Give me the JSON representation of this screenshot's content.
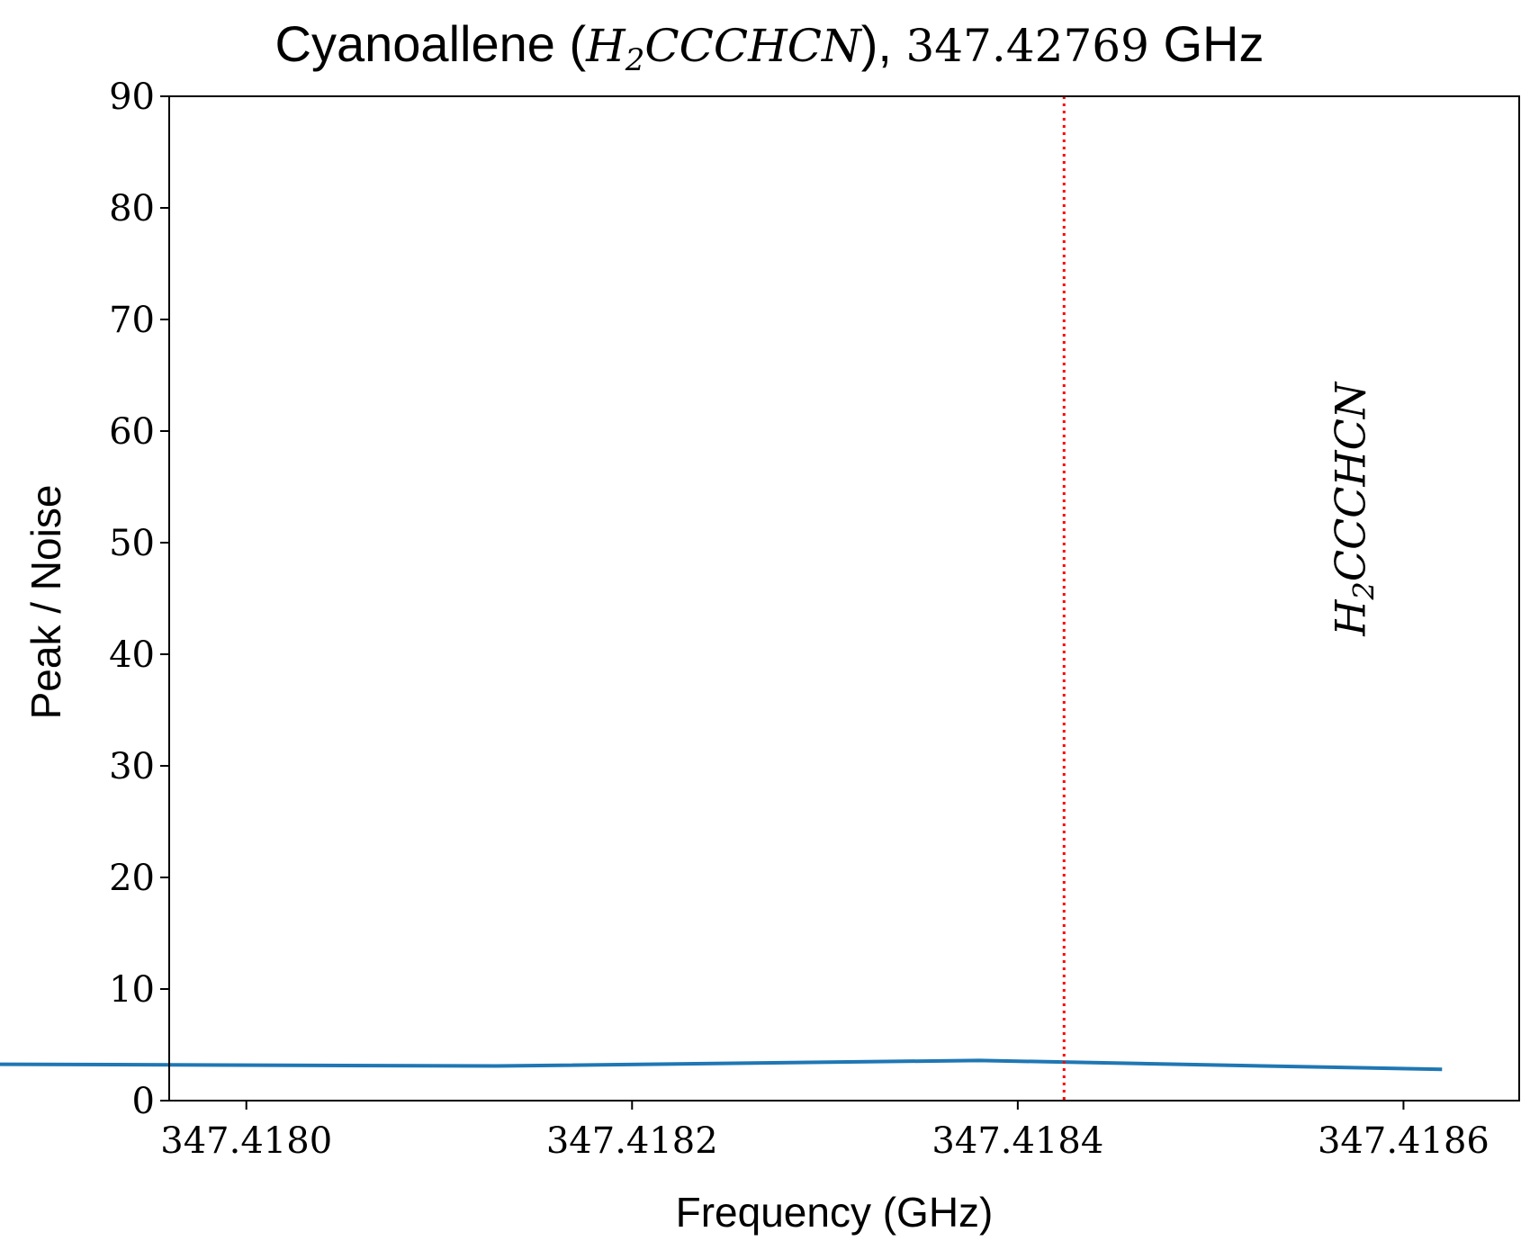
{
  "chart_data": {
    "type": "line",
    "title": {
      "prefix": "Cyanoallene (",
      "molecule": "H",
      "molecule_sub": "2",
      "molecule_rest": "CCCHCN",
      "sep": "), ",
      "freq": "347.42769",
      "unit": " GHz"
    },
    "xlabel": "Frequency (GHz)",
    "ylabel": "Peak / Noise",
    "xlim": [
      347.41796,
      347.41866
    ],
    "ylim": [
      0,
      90
    ],
    "xticks": [
      347.418,
      347.4182,
      347.4184,
      347.4186
    ],
    "xtick_labels": [
      "347.4180",
      "347.4182",
      "347.4184",
      "347.4186"
    ],
    "yticks": [
      0,
      10,
      20,
      30,
      40,
      50,
      60,
      70,
      80,
      90
    ],
    "ytick_labels": [
      "0",
      "10",
      "20",
      "30",
      "40",
      "50",
      "60",
      "70",
      "80",
      "90"
    ],
    "series": [
      {
        "color": "#1f77b4",
        "x": [
          347.41781,
          347.41813,
          347.41838,
          347.41862
        ],
        "y": [
          3.3,
          3.1,
          3.6,
          2.8
        ]
      }
    ],
    "vline": {
      "x": 347.418424,
      "color": "#ff0000",
      "style": "dotted"
    },
    "annotation": {
      "text_main": "H",
      "text_sub": "2",
      "text_rest": "CCCHCN",
      "x": 347.41858,
      "y": 53,
      "rotation": -90
    },
    "grid": false
  }
}
